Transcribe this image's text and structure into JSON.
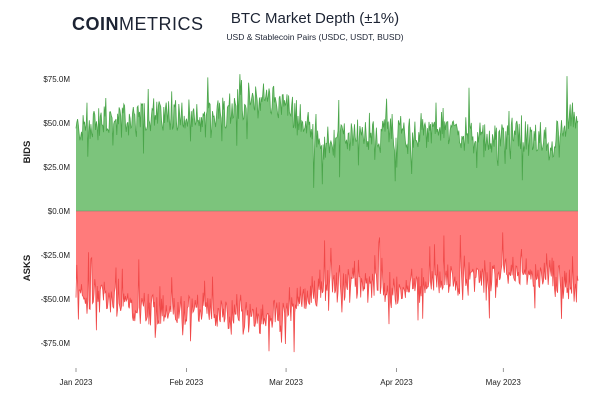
{
  "header": {
    "logo_bold": "COIN",
    "logo_light": "METRICS",
    "title": "BTC Market Depth (±1%)",
    "subtitle": "USD & Stablecoin Pairs (USDC, USDT, BUSD)"
  },
  "chart_data": {
    "type": "area",
    "title": "BTC Market Depth (±1%)",
    "subtitle": "USD & Stablecoin Pairs (USDC, USDT, BUSD)",
    "xlabel": "",
    "ylabel_top": "BIDS",
    "ylabel_bottom": "ASKS",
    "ylim": [
      -85,
      85
    ],
    "y_unit": "$M",
    "y_ticks": [
      75,
      50,
      25,
      0,
      -25,
      -50,
      -75
    ],
    "y_tick_labels": [
      "$75.0M",
      "$50.0M",
      "$25.0M",
      "$0.0M",
      "-$25.0M",
      "-$50.0M",
      "-$75.0M"
    ],
    "x_ticks": [
      "Jan 2023",
      "Feb 2023",
      "Mar 2023",
      "Apr 2023",
      "May 2023"
    ],
    "xlim": [
      "2023-01-01",
      "2023-05-22"
    ],
    "legend": "none",
    "grid": false,
    "colors": {
      "bids_line": "#4aa54a",
      "bids_fill": "#7cc47c",
      "asks_line": "#f04848",
      "asks_fill": "#ff7b7b",
      "axis": "#555555"
    },
    "series": [
      {
        "name": "BIDS",
        "x": [
          "2023-01-01",
          "2023-01-08",
          "2023-01-15",
          "2023-01-22",
          "2023-01-29",
          "2023-02-05",
          "2023-02-12",
          "2023-02-19",
          "2023-02-26",
          "2023-03-05",
          "2023-03-12",
          "2023-03-19",
          "2023-03-26",
          "2023-04-02",
          "2023-04-09",
          "2023-04-16",
          "2023-04-23",
          "2023-04-30",
          "2023-05-07",
          "2023-05-14",
          "2023-05-21"
        ],
        "values": [
          46,
          50,
          52,
          55,
          55,
          50,
          58,
          62,
          64,
          52,
          38,
          42,
          46,
          45,
          46,
          48,
          40,
          42,
          42,
          38,
          52
        ]
      },
      {
        "name": "ASKS",
        "x": [
          "2023-01-01",
          "2023-01-08",
          "2023-01-15",
          "2023-01-22",
          "2023-01-29",
          "2023-02-05",
          "2023-02-12",
          "2023-02-19",
          "2023-02-26",
          "2023-03-05",
          "2023-03-12",
          "2023-03-19",
          "2023-03-26",
          "2023-04-02",
          "2023-04-09",
          "2023-04-16",
          "2023-04-23",
          "2023-04-30",
          "2023-05-07",
          "2023-05-14",
          "2023-05-21"
        ],
        "values": [
          -48,
          -50,
          -52,
          -55,
          -56,
          -56,
          -60,
          -62,
          -60,
          -50,
          -40,
          -42,
          -42,
          -45,
          -42,
          -40,
          -38,
          -38,
          -36,
          -34,
          -45
        ]
      }
    ]
  }
}
